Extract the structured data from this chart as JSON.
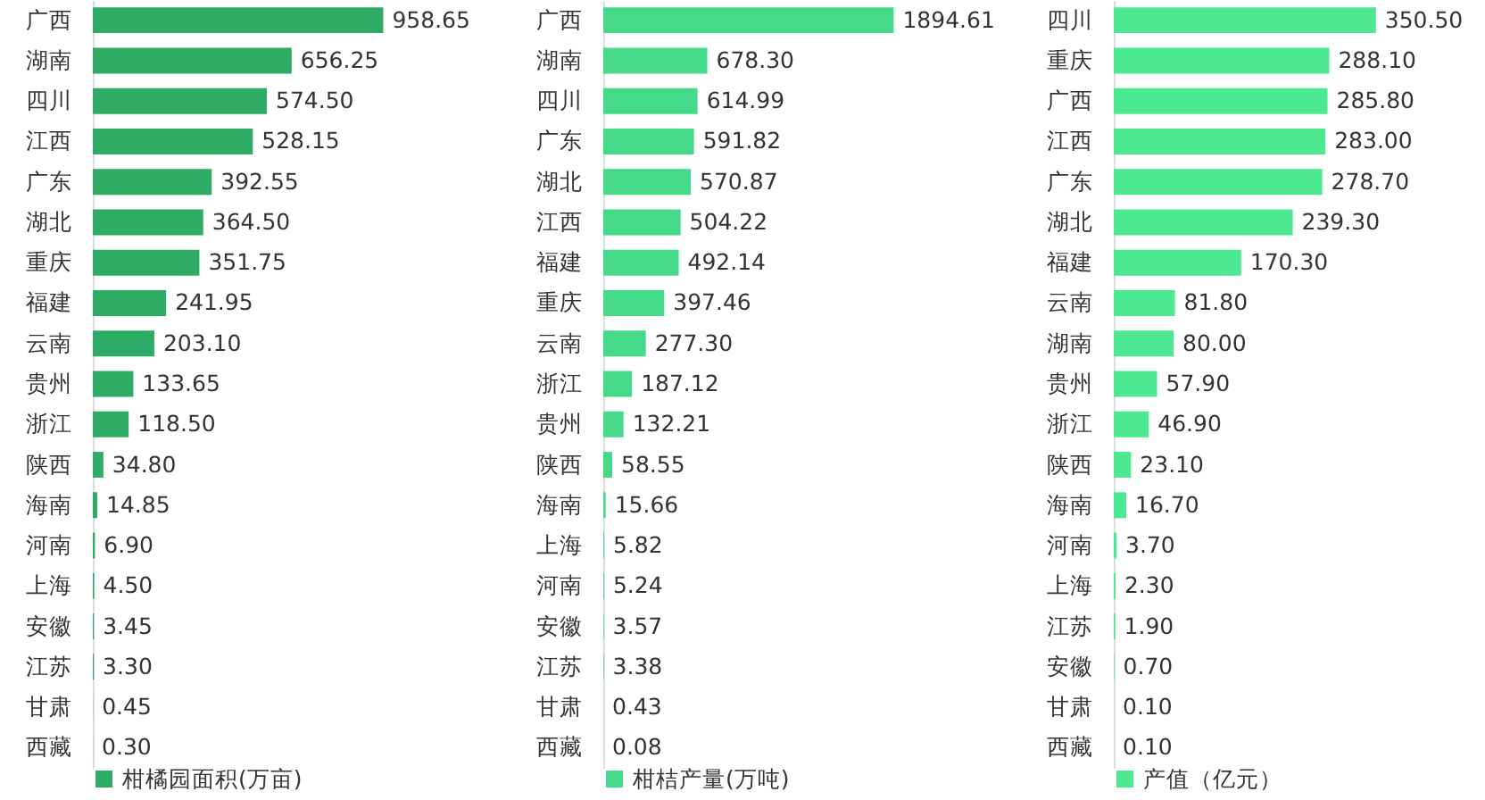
{
  "chart_data": [
    {
      "type": "bar",
      "orientation": "horizontal",
      "categories": [
        "广西",
        "湖南",
        "四川",
        "江西",
        "广东",
        "湖北",
        "重庆",
        "福建",
        "云南",
        "贵州",
        "浙江",
        "陕西",
        "海南",
        "河南",
        "上海",
        "安徽",
        "江苏",
        "甘肃",
        "西藏"
      ],
      "series": [
        {
          "name": "柑橘园面积(万亩)",
          "color": "#2eab64",
          "values": [
            958.65,
            656.25,
            574.5,
            528.15,
            392.55,
            364.5,
            351.75,
            241.95,
            203.1,
            133.65,
            118.5,
            34.8,
            14.85,
            6.9,
            4.5,
            3.45,
            3.3,
            0.45,
            0.3
          ],
          "value_labels": [
            "958.65",
            "656.25",
            "574.50",
            "528.15",
            "392.55",
            "364.50",
            "351.75",
            "241.95",
            "203.10",
            "133.65",
            "118.50",
            "34.80",
            "14.85",
            "6.90",
            "4.50",
            "3.45",
            "3.30",
            "0.45",
            "0.30"
          ]
        }
      ],
      "legend": "bottom"
    },
    {
      "type": "bar",
      "orientation": "horizontal",
      "categories": [
        "广西",
        "湖南",
        "四川",
        "广东",
        "湖北",
        "江西",
        "福建",
        "重庆",
        "云南",
        "浙江",
        "贵州",
        "陕西",
        "海南",
        "上海",
        "河南",
        "安徽",
        "江苏",
        "甘肃",
        "西藏"
      ],
      "series": [
        {
          "name": "柑桔产量(万吨)",
          "color": "#45d98a",
          "values": [
            1894.61,
            678.3,
            614.99,
            591.82,
            570.87,
            504.22,
            492.14,
            397.46,
            277.3,
            187.12,
            132.21,
            58.55,
            15.66,
            5.82,
            5.24,
            3.57,
            3.38,
            0.43,
            0.08
          ],
          "value_labels": [
            "1894.61",
            "678.30",
            "614.99",
            "591.82",
            "570.87",
            "504.22",
            "492.14",
            "397.46",
            "277.30",
            "187.12",
            "132.21",
            "58.55",
            "15.66",
            "5.82",
            "5.24",
            "3.57",
            "3.38",
            "0.43",
            "0.08"
          ]
        }
      ],
      "legend": "bottom"
    },
    {
      "type": "bar",
      "orientation": "horizontal",
      "categories": [
        "四川",
        "重庆",
        "广西",
        "江西",
        "广东",
        "湖北",
        "福建",
        "云南",
        "湖南",
        "贵州",
        "浙江",
        "陕西",
        "海南",
        "河南",
        "上海",
        "江苏",
        "安徽",
        "甘肃",
        "西藏"
      ],
      "series": [
        {
          "name": "产值（亿元）",
          "color": "#4ce892",
          "values": [
            350.5,
            288.1,
            285.8,
            283.0,
            278.7,
            239.3,
            170.3,
            81.8,
            80.0,
            57.9,
            46.9,
            23.1,
            16.7,
            3.7,
            2.3,
            1.9,
            0.7,
            0.1,
            0.1
          ],
          "value_labels": [
            "350.50",
            "288.10",
            "285.80",
            "283.00",
            "278.70",
            "239.30",
            "170.30",
            "81.80",
            "80.00",
            "57.90",
            "46.90",
            "23.10",
            "16.70",
            "3.70",
            "2.30",
            "1.90",
            "0.70",
            "0.10",
            "0.10"
          ]
        }
      ],
      "legend": "bottom"
    }
  ]
}
